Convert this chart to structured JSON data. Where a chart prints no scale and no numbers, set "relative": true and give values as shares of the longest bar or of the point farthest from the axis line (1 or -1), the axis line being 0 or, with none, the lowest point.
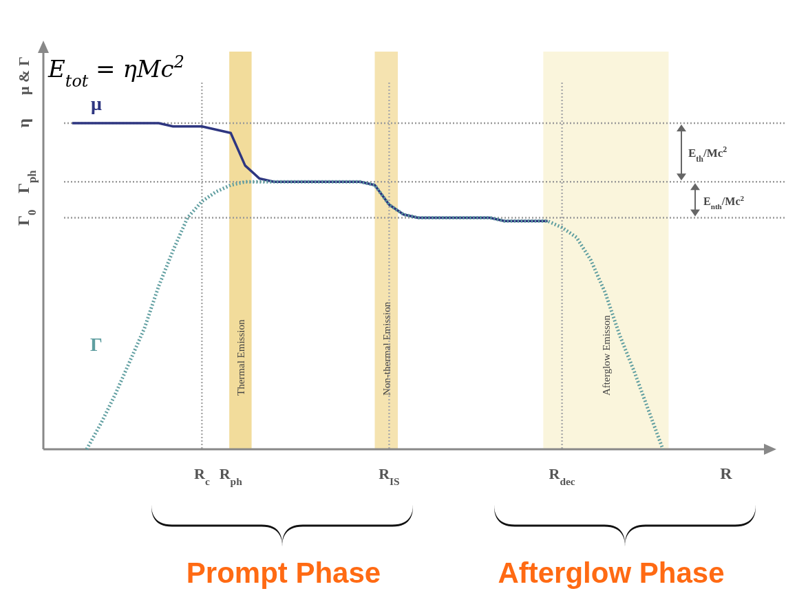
{
  "chart_data": {
    "type": "line",
    "relative": true,
    "ylabel": "μ & Γ",
    "xlabel": "R",
    "legend": false,
    "grid": false,
    "categories": [
      null,
      null,
      null,
      null,
      null,
      null,
      null,
      null,
      null,
      "R$_{c}$",
      null,
      "R$_{ph}$",
      null,
      null,
      null,
      null,
      null,
      null,
      null,
      null,
      null,
      null,
      "R$_{IS}$",
      null,
      null,
      null,
      null,
      null,
      null,
      null,
      null,
      null,
      null,
      null,
      "R$_{dec}$",
      null,
      null,
      null,
      null,
      null,
      null,
      null,
      null
    ],
    "series": [
      {
        "name": "μ",
        "color": "#2e3680",
        "line_style": "solid",
        "values": [
          1.0,
          1.0,
          1.0,
          1.0,
          1.0,
          1.0,
          1.0,
          0.99,
          0.99,
          0.99,
          0.98,
          0.97,
          0.87,
          0.83,
          0.82,
          0.82,
          0.82,
          0.82,
          0.82,
          0.82,
          0.82,
          0.81,
          0.75,
          0.72,
          0.71,
          0.71,
          0.71,
          0.71,
          0.71,
          0.71,
          0.7,
          0.7,
          0.7,
          0.7,
          null,
          null,
          null,
          null,
          null,
          null,
          null,
          null,
          null
        ]
      },
      {
        "name": "Γ",
        "color": "#5f9ea0",
        "line_style": "dotted",
        "values": [
          null,
          0.0,
          0.08,
          0.17,
          0.27,
          0.37,
          0.5,
          0.61,
          0.71,
          0.76,
          0.79,
          0.81,
          0.82,
          0.82,
          0.82,
          0.82,
          0.82,
          0.82,
          0.82,
          0.82,
          0.82,
          0.81,
          0.75,
          0.72,
          0.71,
          0.71,
          0.71,
          0.71,
          0.71,
          0.71,
          0.7,
          0.7,
          0.7,
          0.7,
          0.68,
          0.65,
          0.58,
          0.48,
          0.35,
          0.24,
          0.12,
          0.0,
          null
        ]
      }
    ],
    "ref_lines": [
      {
        "axis": "y",
        "value": 1.0,
        "label": "η",
        "line_style": "dotted",
        "color": "#999999"
      },
      {
        "axis": "y",
        "value": 0.82,
        "label": "Γ$_{ph}$",
        "line_style": "dotted",
        "color": "#999999"
      },
      {
        "axis": "y",
        "value": 0.71,
        "label": "Γ$_{0}$",
        "line_style": "dotted",
        "color": "#999999"
      },
      {
        "axis": "x",
        "value": "R$_{c}$",
        "line_style": "dotted",
        "color": "#aaaaaa"
      },
      {
        "axis": "x",
        "value": "R$_{IS}$",
        "line_style": "dotted",
        "color": "#aaaaaa"
      },
      {
        "axis": "x",
        "value": "R$_{dec}$",
        "line_style": "dotted",
        "color": "#aaaaaa"
      }
    ],
    "annotations": [
      "E$_{tot}$ = ηMc$^{2}$",
      "E$_{th}$/Mc$^{2}$",
      "E$_{nth}$/Mc$^{2}$",
      "Prompt Phase",
      "Afterglow Phase",
      "Thermal Emission",
      "Non-thermal Emission",
      "Afterglow Emisson"
    ]
  }
}
